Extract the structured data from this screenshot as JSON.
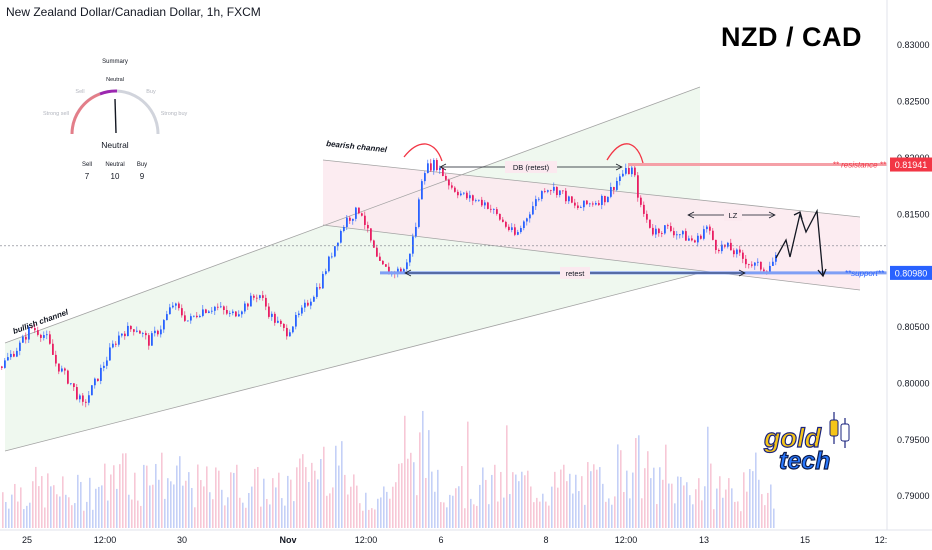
{
  "chart_title": "New Zealand Dollar/Canadian Dollar, 1h, FXCM",
  "symbol_title": "NZD / CAD",
  "logo_text": [
    "gold",
    "tech"
  ],
  "colors": {
    "bull": "#26a69a",
    "bear": "#ef5350",
    "candle_up": "#2962ff",
    "candle_down": "#e91e63",
    "resistance": "#f23645",
    "support": "#2962ff",
    "accent_purple": "#9c27b0"
  },
  "summary": {
    "title": "Summary",
    "gauge_labels": [
      "Neutral",
      "Sell",
      "Buy",
      "Strong sell",
      "Strong buy"
    ],
    "reading": "Neutral",
    "counts": [
      {
        "label": "Sell",
        "value": "7"
      },
      {
        "label": "Neutral",
        "value": "10"
      },
      {
        "label": "Buy",
        "value": "9"
      }
    ]
  },
  "annotations": {
    "bullish_channel": "bullish channel",
    "bearish_channel": "bearish channel",
    "db_retest": "DB (retest)",
    "retest": "retest",
    "lz": "LZ",
    "resistance": "** resistance **",
    "support": "**support**"
  },
  "chart_data": {
    "type": "candlestick",
    "title": "New Zealand Dollar/Canadian Dollar, 1h, FXCM",
    "y_ticks": [
      "0.83000",
      "0.82500",
      "0.82000",
      "0.81500",
      "0.81000",
      "0.80500",
      "0.80000",
      "0.79500",
      "0.79000"
    ],
    "x_ticks": [
      "25",
      "12:00",
      "30",
      "Nov",
      "12:00",
      "6",
      "8",
      "12:00",
      "13",
      "15",
      "12:"
    ],
    "ylim": [
      0.787,
      0.834
    ],
    "price_labels": [
      {
        "value": 0.81941,
        "text": "0.81941"
      },
      {
        "value": 0.8098,
        "text": "0.80980"
      }
    ],
    "current_price": 0.8122,
    "price_path": [
      [
        0,
        0.8015
      ],
      [
        20,
        0.8035
      ],
      [
        30,
        0.805
      ],
      [
        45,
        0.8042
      ],
      [
        55,
        0.8018
      ],
      [
        70,
        0.8
      ],
      [
        82,
        0.798
      ],
      [
        95,
        0.8002
      ],
      [
        110,
        0.803
      ],
      [
        120,
        0.8045
      ],
      [
        135,
        0.805
      ],
      [
        148,
        0.8037
      ],
      [
        160,
        0.805
      ],
      [
        172,
        0.807
      ],
      [
        188,
        0.8055
      ],
      [
        200,
        0.8065
      ],
      [
        215,
        0.8068
      ],
      [
        230,
        0.806
      ],
      [
        245,
        0.807
      ],
      [
        258,
        0.808
      ],
      [
        270,
        0.806
      ],
      [
        285,
        0.8045
      ],
      [
        300,
        0.8062
      ],
      [
        320,
        0.809
      ],
      [
        335,
        0.8125
      ],
      [
        345,
        0.8145
      ],
      [
        360,
        0.8155
      ],
      [
        368,
        0.813
      ],
      [
        378,
        0.8105
      ],
      [
        390,
        0.8098
      ],
      [
        405,
        0.8102
      ],
      [
        415,
        0.814
      ],
      [
        422,
        0.819
      ],
      [
        435,
        0.8195
      ],
      [
        450,
        0.8175
      ],
      [
        465,
        0.8165
      ],
      [
        485,
        0.816
      ],
      [
        500,
        0.8145
      ],
      [
        515,
        0.813
      ],
      [
        530,
        0.8155
      ],
      [
        545,
        0.8175
      ],
      [
        560,
        0.817
      ],
      [
        575,
        0.8155
      ],
      [
        590,
        0.816
      ],
      [
        605,
        0.8165
      ],
      [
        620,
        0.8185
      ],
      [
        632,
        0.819
      ],
      [
        640,
        0.8155
      ],
      [
        652,
        0.8135
      ],
      [
        665,
        0.8138
      ],
      [
        680,
        0.8132
      ],
      [
        695,
        0.8125
      ],
      [
        705,
        0.814
      ],
      [
        715,
        0.8122
      ],
      [
        728,
        0.812
      ],
      [
        740,
        0.8112
      ],
      [
        752,
        0.8105
      ],
      [
        765,
        0.8102
      ],
      [
        775,
        0.811
      ]
    ],
    "volume_path": [
      [
        0,
        0.45
      ],
      [
        40,
        0.5
      ],
      [
        70,
        0.4
      ],
      [
        100,
        0.55
      ],
      [
        130,
        0.6
      ],
      [
        160,
        0.65
      ],
      [
        200,
        0.5
      ],
      [
        240,
        0.55
      ],
      [
        280,
        0.45
      ],
      [
        320,
        0.8
      ],
      [
        330,
        1.0
      ],
      [
        350,
        0.45
      ],
      [
        380,
        0.4
      ],
      [
        410,
        0.75
      ],
      [
        420,
        1.0
      ],
      [
        440,
        0.6
      ],
      [
        480,
        0.5
      ],
      [
        520,
        0.55
      ],
      [
        560,
        0.5
      ],
      [
        600,
        0.55
      ],
      [
        630,
        0.85
      ],
      [
        660,
        0.5
      ],
      [
        700,
        0.55
      ],
      [
        740,
        0.45
      ],
      [
        775,
        0.55
      ]
    ]
  }
}
